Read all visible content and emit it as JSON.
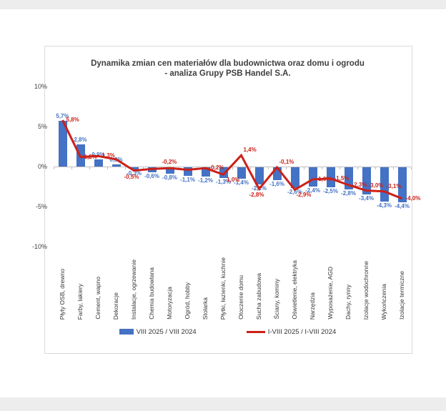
{
  "chart_data": {
    "type": "bar",
    "combo": "bar+line",
    "title": "Dynamika zmian cen materiałów dla budownictwa oraz domu i ogrodu",
    "subtitle": "- analiza Grupy PSB Handel S.A.",
    "categories": [
      "Płyty OSB, drewno",
      "Farby, lakiery",
      "Cement, wapno",
      "Dekoracje",
      "Instalacje, ogrzewanie",
      "Chemia budowlana",
      "Motoryzacja",
      "Ogród, hobby",
      "Stolarka",
      "Płytki, łazienki, kuchnie",
      "Otoczenie domu",
      "Sucha zabudowa",
      "Ściany, kominy",
      "Oświetlenie, elektryka",
      "Narzędzia",
      "Wyposażenie, AGD",
      "Dachy, rynny",
      "Izolacje wodochronne",
      "Wykończenia",
      "Izolacje termiczne"
    ],
    "series": [
      {
        "name": "VIII 2025 / VIII 2024",
        "type": "bar",
        "color": "#4472C4",
        "values": [
          5.7,
          2.8,
          0.9,
          0.3,
          -0.3,
          -0.6,
          -0.8,
          -1.1,
          -1.2,
          -1.3,
          -1.4,
          -2.1,
          -1.6,
          -2.6,
          -2.4,
          -2.5,
          -2.8,
          -3.4,
          -4.3,
          -4.4
        ],
        "labels": [
          "5,7%",
          "2,8%",
          "0,9%",
          "0,3%",
          "-0,3%",
          "-0,6%",
          "-0,8%",
          "-1,1%",
          "-1,2%",
          "-1,3%",
          "-1,4%",
          "-2,1%",
          "-1,6%",
          "-2,6%",
          "-2,4%",
          "-2,5%",
          "-2,8%",
          "-3,4%",
          "-4,3%",
          "-4,4%"
        ]
      },
      {
        "name": "I-VIII 2025 / I-VIII 2024",
        "type": "line",
        "color": "#CC2018",
        "values": [
          5.8,
          1.2,
          1.3,
          0.9,
          -0.5,
          -0.3,
          -0.2,
          -0.4,
          -0.2,
          -1.0,
          1.4,
          -2.8,
          -0.1,
          -2.9,
          -1.6,
          -1.5,
          -2.3,
          -3.0,
          -3.1,
          -4.0
        ],
        "labels": [
          "5,8%",
          "1,2%",
          "1,3%",
          "0,9%",
          "-0,5%",
          "-0,3%",
          "-0,2%",
          "-0,4%",
          "-0,2%",
          "-1,0%",
          "1,4%",
          "-2,8%",
          "-0,1%",
          "-2,9%",
          "-1,6%",
          "-1,5%",
          "-2,3%",
          "-3,0%",
          "-3,1%",
          "-4,0%"
        ],
        "label_positions": [
          "right",
          "right",
          "right",
          "hide",
          "below",
          "hide",
          "above",
          "hide",
          "right",
          "below-right",
          "above-right",
          "below",
          "above-right",
          "below-right",
          "right",
          "right",
          "right",
          "above-right",
          "above-right",
          "right"
        ]
      }
    ],
    "y_axis": {
      "tick_labels": [
        "10%",
        "5%",
        "0%",
        "-5%",
        "-10%"
      ],
      "tick_values": [
        10,
        5,
        0,
        -5,
        -10
      ],
      "min": -10,
      "max": 10
    },
    "legend_position": "bottom",
    "grid": false
  }
}
